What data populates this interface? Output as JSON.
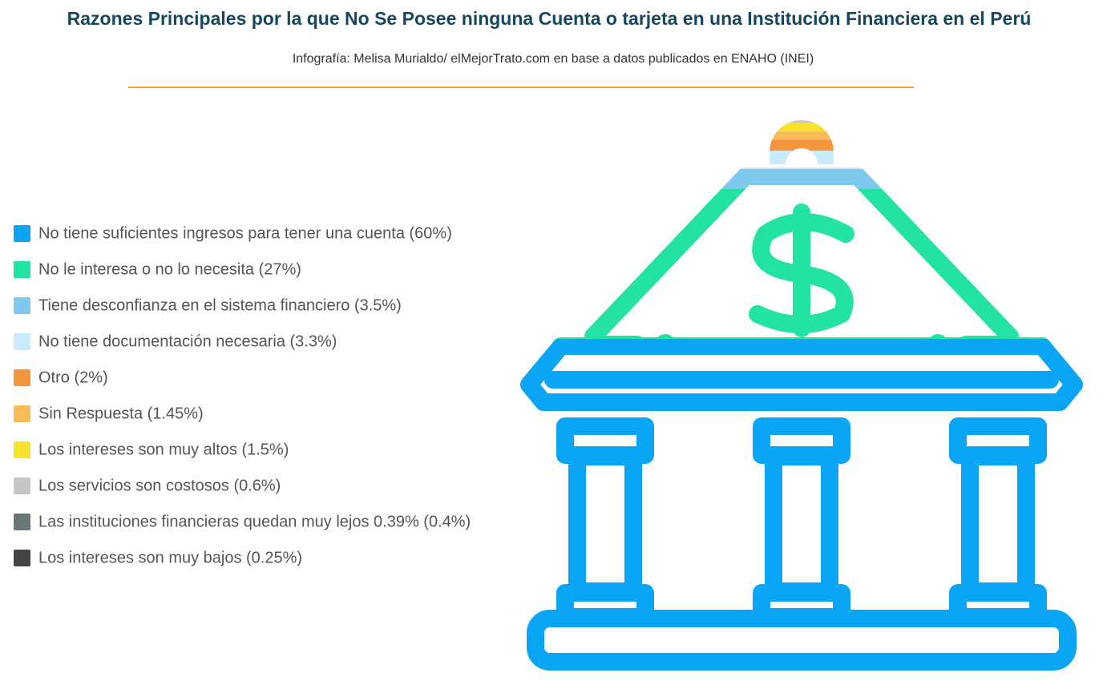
{
  "title": "Razones Principales por la que No Se Posee ninguna Cuenta o tarjeta en una Institución Financiera en el Perú",
  "subtitle": "Infografía: Melisa Murialdo/ elMejorTrato.com en base a datos publicados en ENAHO (INEI)",
  "chart_data": {
    "type": "pictorial-stack",
    "categories": [
      "No tiene suficientes ingresos para tener una cuenta (60%)",
      "No le interesa o no lo necesita  (27%)",
      "Tiene desconfianza en el sistema financiero  (3.5%)",
      "No tiene documentación necesaria  (3.3%)",
      "Otro (2%)",
      "Sin Respuesta (1.45%)",
      "Los intereses son muy altos (1.5%)",
      "Los servicios son costosos (0.6%)",
      "Las instituciones financieras quedan muy lejos 0.39%  (0.4%)",
      "Los intereses son muy bajos (0.25%)"
    ],
    "values": [
      60,
      27,
      3.5,
      3.3,
      2,
      1.45,
      1.5,
      0.6,
      0.4,
      0.25
    ],
    "colors": [
      "#0aa5f5",
      "#22e3a2",
      "#80c9ee",
      "#c9ecfb",
      "#f5963c",
      "#f7bb57",
      "#f7e22c",
      "#c6c6c6",
      "#687878",
      "#444444"
    ]
  }
}
